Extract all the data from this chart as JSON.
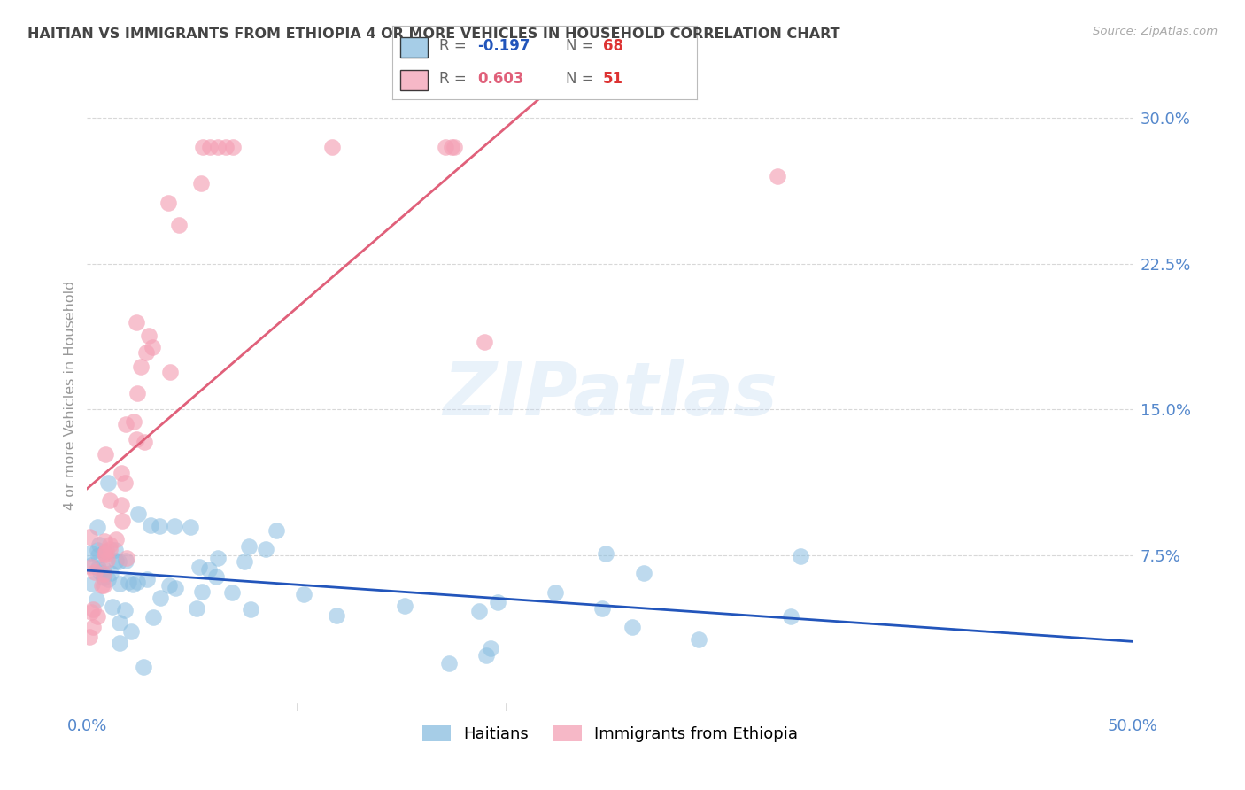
{
  "title": "HAITIAN VS IMMIGRANTS FROM ETHIOPIA 4 OR MORE VEHICLES IN HOUSEHOLD CORRELATION CHART",
  "source": "Source: ZipAtlas.com",
  "ylabel": "4 or more Vehicles in Household",
  "xmin": 0.0,
  "xmax": 0.5,
  "ymin": -0.005,
  "ymax": 0.32,
  "yticks": [
    0.0,
    0.075,
    0.15,
    0.225,
    0.3
  ],
  "ytick_labels": [
    "",
    "7.5%",
    "15.0%",
    "22.5%",
    "30.0%"
  ],
  "legend_label1": "Haitians",
  "legend_label2": "Immigrants from Ethiopia",
  "r1": -0.197,
  "n1": 68,
  "r2": 0.603,
  "n2": 51,
  "color_blue": "#89bde0",
  "color_pink": "#f4a0b5",
  "color_line_blue": "#2255bb",
  "color_line_pink": "#e0607a",
  "color_dashed": "#e8b0bb",
  "background_color": "#ffffff",
  "grid_color": "#d8d8d8",
  "title_color": "#444444",
  "axis_label_color": "#5588cc",
  "watermark": "ZIPatlas",
  "seed": 42
}
